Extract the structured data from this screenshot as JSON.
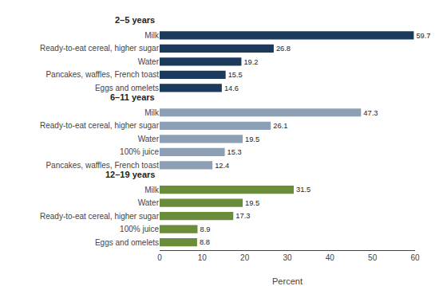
{
  "chart_data": {
    "type": "bar",
    "orientation": "horizontal",
    "data_labels": true,
    "grid": false,
    "xlabel": "Percent",
    "xlim": [
      0,
      60
    ],
    "xticks": [
      0,
      10,
      20,
      30,
      40,
      50,
      60
    ],
    "groups": [
      {
        "label": "2–5 years",
        "color": "#1b3a5c",
        "categories": [
          "Milk",
          "Ready-to-eat cereal, higher sugar",
          "Water",
          "Pancakes, waffles, French toast",
          "Eggs and omelets"
        ],
        "values": [
          59.7,
          26.8,
          19.2,
          15.5,
          14.6
        ]
      },
      {
        "label": "6–11 years",
        "color": "#8d9fb5",
        "categories": [
          "Milk",
          "Ready-to-eat cereal, higher sugar",
          "Water",
          "100% juice",
          "Pancakes, waffles, French toast"
        ],
        "values": [
          47.3,
          26.1,
          19.5,
          15.3,
          12.4
        ]
      },
      {
        "label": "12–19 years",
        "color": "#6b8c3a",
        "categories": [
          "Milk",
          "Water",
          "Ready-to-eat cereal, higher sugar",
          "100% juice",
          "Eggs and omelets"
        ],
        "values": [
          31.5,
          19.5,
          17.3,
          8.9,
          8.8
        ]
      }
    ]
  }
}
